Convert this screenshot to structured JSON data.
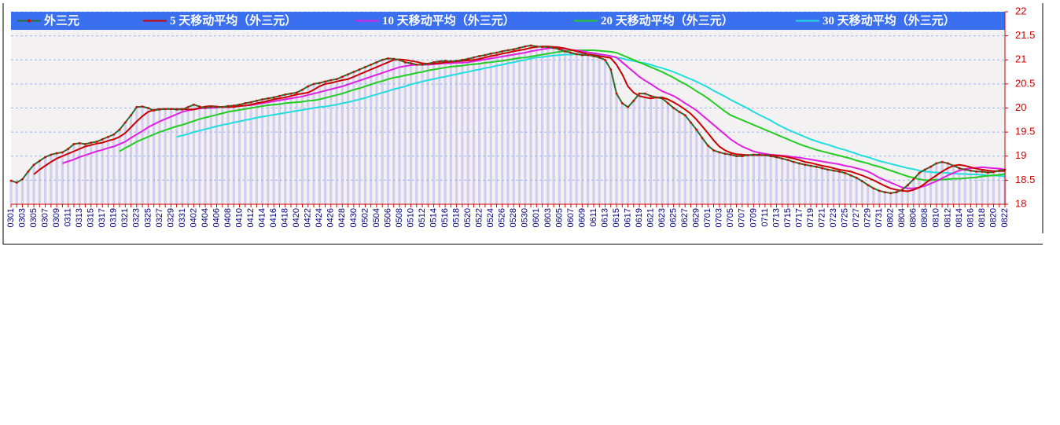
{
  "chart_data": {
    "type": "line",
    "categories": [
      "0301",
      null,
      "0303",
      null,
      "0305",
      null,
      "0307",
      null,
      "0309",
      null,
      "0311",
      null,
      "0313",
      null,
      "0315",
      null,
      "0317",
      null,
      "0319",
      null,
      "0321",
      null,
      "0323",
      null,
      "0325",
      null,
      "0327",
      null,
      "0329",
      null,
      "0331",
      null,
      "0402",
      null,
      "0404",
      null,
      "0406",
      null,
      "0408",
      null,
      "0410",
      null,
      "0412",
      null,
      "0414",
      null,
      "0416",
      null,
      "0418",
      null,
      "0420",
      null,
      "0422",
      null,
      "0424",
      null,
      "0426",
      null,
      "0428",
      null,
      "0430",
      null,
      "0502",
      null,
      "0504",
      null,
      "0506",
      null,
      "0508",
      null,
      "0510",
      null,
      "0512",
      null,
      "0514",
      null,
      "0516",
      null,
      "0518",
      null,
      "0520",
      null,
      "0522",
      null,
      "0524",
      null,
      "0526",
      null,
      "0528",
      null,
      "0530",
      null,
      "0601",
      null,
      "0603",
      null,
      "0605",
      null,
      "0607",
      null,
      "0609",
      null,
      "0611",
      null,
      "0613",
      null,
      "0615",
      null,
      "0617",
      null,
      "0619",
      null,
      "0621",
      null,
      "0623",
      null,
      "0625",
      null,
      "0627",
      null,
      "0629",
      null,
      "0701",
      null,
      "0703",
      null,
      "0705",
      null,
      "0707",
      null,
      "0709",
      null,
      "0711",
      null,
      "0713",
      null,
      "0715",
      null,
      "0717",
      null,
      "0719",
      null,
      "0721",
      null,
      "0723",
      null,
      "0725",
      null,
      "0727",
      null,
      "0729",
      null,
      "0731",
      null,
      "0802",
      null,
      "0804",
      null,
      "0806",
      null,
      "0808",
      null,
      "0810",
      null,
      "0812",
      null,
      "0814",
      null,
      "0816",
      null,
      "0818",
      null,
      "0820",
      null,
      "0822"
    ],
    "series": [
      {
        "name": "外三元",
        "color": "#2e6b2e",
        "marker_color": "#dd0000",
        "values": [
          18.49,
          18.45,
          18.52,
          18.68,
          18.82,
          18.9,
          18.98,
          19.03,
          19.06,
          19.08,
          19.15,
          19.25,
          19.27,
          19.25,
          19.28,
          19.3,
          19.35,
          19.4,
          19.45,
          19.55,
          19.7,
          19.85,
          20.02,
          20.03,
          20.0,
          19.95,
          19.97,
          19.98,
          19.98,
          19.97,
          19.97,
          20.02,
          20.07,
          20.03,
          20.0,
          20.03,
          20.02,
          20.02,
          20.04,
          20.05,
          20.07,
          20.1,
          20.12,
          20.15,
          20.18,
          20.2,
          20.22,
          20.25,
          20.28,
          20.3,
          20.32,
          20.38,
          20.45,
          20.5,
          20.52,
          20.55,
          20.58,
          20.6,
          20.65,
          20.7,
          20.75,
          20.8,
          20.85,
          20.9,
          20.95,
          21.0,
          21.03,
          21.02,
          21.0,
          20.95,
          20.93,
          20.9,
          20.9,
          20.92,
          20.95,
          20.97,
          20.98,
          20.97,
          20.98,
          21.0,
          21.02,
          21.05,
          21.08,
          21.1,
          21.13,
          21.15,
          21.18,
          21.2,
          21.22,
          21.25,
          21.28,
          21.3,
          21.28,
          21.27,
          21.27,
          21.25,
          21.22,
          21.18,
          21.15,
          21.12,
          21.1,
          21.1,
          21.08,
          21.05,
          21.0,
          20.8,
          20.3,
          20.1,
          20.02,
          20.15,
          20.3,
          20.3,
          20.25,
          20.22,
          20.2,
          20.1,
          20.0,
          19.92,
          19.85,
          19.7,
          19.55,
          19.38,
          19.22,
          19.12,
          19.08,
          19.05,
          19.03,
          19.0,
          19.0,
          19.02,
          19.03,
          19.03,
          19.02,
          19.0,
          18.98,
          18.95,
          18.92,
          18.88,
          18.85,
          18.82,
          18.8,
          18.78,
          18.75,
          18.72,
          18.7,
          18.68,
          18.65,
          18.6,
          18.55,
          18.48,
          18.4,
          18.33,
          18.28,
          18.25,
          18.23,
          18.25,
          18.3,
          18.4,
          18.52,
          18.65,
          18.72,
          18.78,
          18.85,
          18.88,
          18.85,
          18.8,
          18.75,
          18.72,
          18.7,
          18.68,
          18.68,
          18.66,
          18.67,
          18.7,
          18.72
        ]
      },
      {
        "name": "5 天移动平均（外三元）",
        "color": "#cc0000",
        "values": [
          null,
          null,
          null,
          null,
          18.62,
          18.72,
          18.8,
          18.88,
          18.95,
          19.0,
          19.05,
          19.1,
          19.15,
          19.2,
          19.23,
          19.26,
          19.28,
          19.32,
          19.35,
          19.4,
          19.48,
          19.6,
          19.72,
          19.83,
          19.92,
          19.96,
          19.98,
          19.98,
          19.98,
          19.98,
          19.98,
          19.97,
          19.97,
          20.0,
          20.03,
          20.04,
          20.03,
          20.02,
          20.02,
          20.02,
          20.04,
          20.05,
          20.07,
          20.1,
          20.12,
          20.15,
          20.18,
          20.2,
          20.22,
          20.25,
          20.28,
          20.3,
          20.32,
          20.38,
          20.45,
          20.5,
          20.52,
          20.55,
          20.58,
          20.6,
          20.65,
          20.7,
          20.75,
          20.8,
          20.85,
          20.9,
          20.95,
          21.0,
          21.01,
          21.0,
          20.98,
          20.96,
          20.93,
          20.92,
          20.92,
          20.93,
          20.95,
          20.96,
          20.97,
          20.98,
          20.99,
          21.0,
          21.02,
          21.05,
          21.08,
          21.1,
          21.13,
          21.15,
          21.18,
          21.2,
          21.22,
          21.25,
          21.27,
          21.28,
          21.28,
          21.27,
          21.26,
          21.24,
          21.21,
          21.18,
          21.15,
          21.12,
          21.1,
          21.08,
          21.06,
          21.04,
          20.9,
          20.7,
          20.45,
          20.32,
          20.25,
          20.22,
          20.2,
          20.22,
          20.22,
          20.18,
          20.12,
          20.05,
          19.97,
          19.88,
          19.76,
          19.62,
          19.48,
          19.33,
          19.2,
          19.12,
          19.07,
          19.04,
          19.03,
          19.02,
          19.02,
          19.02,
          19.02,
          19.02,
          19.01,
          19.0,
          18.98,
          18.95,
          18.92,
          18.88,
          18.86,
          18.83,
          18.8,
          18.78,
          18.75,
          18.72,
          18.7,
          18.68,
          18.64,
          18.6,
          18.55,
          18.5,
          18.44,
          18.38,
          18.33,
          18.3,
          18.28,
          18.27,
          18.3,
          18.35,
          18.43,
          18.52,
          18.6,
          18.68,
          18.75,
          18.8,
          18.82,
          18.8,
          18.77,
          18.74,
          18.72,
          18.7,
          18.69,
          18.69,
          18.69
        ]
      },
      {
        "name": "10 天移动平均（外三元）",
        "color": "#e020e0",
        "values": [
          null,
          null,
          null,
          null,
          null,
          null,
          null,
          null,
          null,
          18.85,
          18.89,
          18.93,
          18.98,
          19.02,
          19.06,
          19.1,
          19.13,
          19.17,
          19.2,
          19.25,
          19.3,
          19.38,
          19.45,
          19.52,
          19.6,
          19.66,
          19.72,
          19.77,
          19.82,
          19.87,
          19.92,
          19.95,
          19.97,
          19.99,
          20.0,
          20.0,
          20.01,
          20.02,
          20.02,
          20.03,
          20.04,
          20.05,
          20.06,
          20.08,
          20.1,
          20.12,
          20.14,
          20.16,
          20.18,
          20.2,
          20.22,
          20.24,
          20.27,
          20.3,
          20.33,
          20.36,
          20.39,
          20.42,
          20.45,
          20.49,
          20.53,
          20.57,
          20.61,
          20.65,
          20.69,
          20.73,
          20.77,
          20.81,
          20.85,
          20.87,
          20.89,
          20.9,
          20.9,
          20.9,
          20.91,
          20.92,
          20.93,
          20.93,
          20.94,
          20.94,
          20.95,
          20.97,
          20.99,
          21.01,
          21.03,
          21.05,
          21.07,
          21.09,
          21.11,
          21.13,
          21.15,
          21.18,
          21.2,
          21.22,
          21.24,
          21.25,
          21.24,
          21.23,
          21.21,
          21.2,
          21.18,
          21.16,
          21.14,
          21.12,
          21.1,
          21.08,
          21.05,
          20.95,
          20.85,
          20.75,
          20.65,
          20.57,
          20.5,
          20.42,
          20.35,
          20.3,
          20.25,
          20.18,
          20.1,
          20.03,
          19.95,
          19.85,
          19.75,
          19.65,
          19.55,
          19.45,
          19.35,
          19.27,
          19.2,
          19.15,
          19.1,
          19.07,
          19.05,
          19.03,
          19.02,
          19.01,
          19.0,
          18.98,
          18.97,
          18.95,
          18.93,
          18.91,
          18.89,
          18.87,
          18.85,
          18.83,
          18.8,
          18.78,
          18.75,
          18.72,
          18.68,
          18.62,
          18.55,
          18.5,
          18.45,
          18.4,
          18.35,
          18.33,
          18.33,
          18.35,
          18.38,
          18.43,
          18.48,
          18.54,
          18.6,
          18.65,
          18.7,
          18.73,
          18.75,
          18.76,
          18.77,
          18.76,
          18.75,
          18.74,
          18.72
        ]
      },
      {
        "name": "20 天移动平均（外三元）",
        "color": "#22cc22",
        "values": [
          null,
          null,
          null,
          null,
          null,
          null,
          null,
          null,
          null,
          null,
          null,
          null,
          null,
          null,
          null,
          null,
          null,
          null,
          null,
          19.1,
          19.17,
          19.23,
          19.3,
          19.35,
          19.4,
          19.45,
          19.5,
          19.54,
          19.58,
          19.62,
          19.65,
          19.69,
          19.73,
          19.77,
          19.8,
          19.83,
          19.86,
          19.89,
          19.92,
          19.94,
          19.96,
          19.98,
          20.0,
          20.02,
          20.04,
          20.06,
          20.07,
          20.08,
          20.1,
          20.11,
          20.12,
          20.13,
          20.15,
          20.16,
          20.18,
          20.21,
          20.24,
          20.27,
          20.3,
          20.34,
          20.38,
          20.41,
          20.45,
          20.49,
          20.53,
          20.56,
          20.6,
          20.63,
          20.65,
          20.68,
          20.7,
          20.73,
          20.75,
          20.78,
          20.8,
          20.82,
          20.84,
          20.86,
          20.87,
          20.88,
          20.9,
          20.91,
          20.92,
          20.94,
          20.95,
          20.97,
          20.98,
          21.0,
          21.02,
          21.04,
          21.05,
          21.07,
          21.09,
          21.11,
          21.13,
          21.15,
          21.17,
          21.18,
          21.2,
          21.2,
          21.2,
          21.2,
          21.2,
          21.19,
          21.18,
          21.17,
          21.15,
          21.1,
          21.05,
          21.0,
          20.95,
          20.9,
          20.85,
          20.8,
          20.75,
          20.69,
          20.63,
          20.56,
          20.5,
          20.43,
          20.35,
          20.28,
          20.2,
          20.11,
          20.02,
          19.93,
          19.85,
          19.8,
          19.75,
          19.7,
          19.65,
          19.6,
          19.55,
          19.5,
          19.45,
          19.4,
          19.35,
          19.3,
          19.25,
          19.21,
          19.17,
          19.13,
          19.1,
          19.07,
          19.04,
          19.01,
          18.98,
          18.95,
          18.91,
          18.88,
          18.85,
          18.81,
          18.78,
          18.74,
          18.7,
          18.66,
          18.62,
          18.58,
          18.55,
          18.52,
          18.5,
          18.5,
          18.51,
          18.51,
          18.52,
          18.53,
          18.53,
          18.54,
          18.55,
          18.56,
          18.58,
          18.59,
          18.6,
          18.61,
          18.63
        ]
      },
      {
        "name": "30 天移动平均（外三元）",
        "color": "#22dddd",
        "values": [
          null,
          null,
          null,
          null,
          null,
          null,
          null,
          null,
          null,
          null,
          null,
          null,
          null,
          null,
          null,
          null,
          null,
          null,
          null,
          null,
          null,
          null,
          null,
          null,
          null,
          null,
          null,
          null,
          null,
          19.4,
          19.43,
          19.46,
          19.5,
          19.53,
          19.56,
          19.59,
          19.62,
          19.65,
          19.67,
          19.7,
          19.72,
          19.75,
          19.77,
          19.8,
          19.82,
          19.84,
          19.86,
          19.88,
          19.9,
          19.92,
          19.94,
          19.96,
          19.98,
          20.0,
          20.02,
          20.03,
          20.05,
          20.07,
          20.1,
          20.12,
          20.15,
          20.18,
          20.21,
          20.25,
          20.28,
          20.32,
          20.35,
          20.39,
          20.42,
          20.45,
          20.49,
          20.52,
          20.55,
          20.58,
          20.6,
          20.63,
          20.65,
          20.68,
          20.7,
          20.73,
          20.75,
          20.78,
          20.8,
          20.83,
          20.85,
          20.88,
          20.9,
          20.93,
          20.95,
          20.98,
          21.0,
          21.03,
          21.05,
          21.06,
          21.08,
          21.09,
          21.1,
          21.11,
          21.11,
          21.12,
          21.12,
          21.12,
          21.11,
          21.11,
          21.1,
          21.08,
          21.05,
          21.03,
          21.0,
          20.98,
          20.95,
          20.93,
          20.9,
          20.86,
          20.83,
          20.79,
          20.75,
          20.7,
          20.65,
          20.6,
          20.55,
          20.49,
          20.43,
          20.36,
          20.3,
          20.24,
          20.17,
          20.11,
          20.05,
          19.99,
          19.92,
          19.86,
          19.8,
          19.74,
          19.67,
          19.61,
          19.55,
          19.5,
          19.45,
          19.4,
          19.35,
          19.31,
          19.27,
          19.24,
          19.2,
          19.16,
          19.13,
          19.09,
          19.05,
          19.01,
          18.98,
          18.94,
          18.9,
          18.87,
          18.84,
          18.81,
          18.78,
          18.75,
          18.73,
          18.7,
          18.68,
          18.67,
          18.66,
          18.66,
          18.65,
          18.64,
          18.63,
          18.63,
          18.62,
          18.62,
          18.61,
          18.6,
          18.6,
          18.59,
          18.58
        ]
      }
    ],
    "ylim": [
      18,
      22
    ],
    "yticks": [
      18,
      18.5,
      19,
      19.5,
      20,
      20.5,
      21,
      21.5,
      22
    ],
    "grid": true,
    "legend": "top"
  }
}
